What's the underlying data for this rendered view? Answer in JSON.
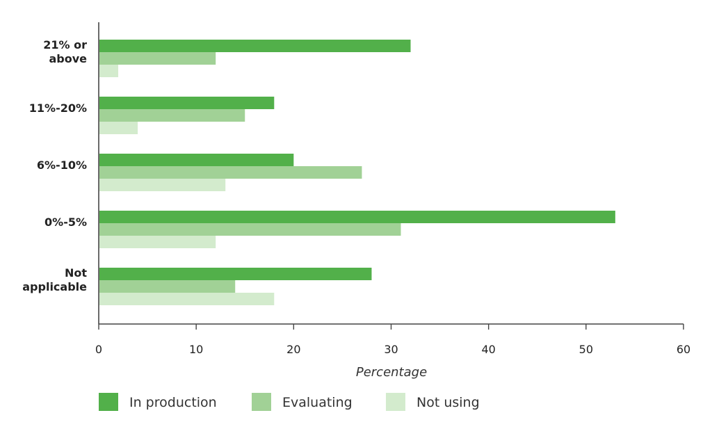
{
  "chart_data": {
    "type": "bar",
    "orientation": "horizontal",
    "categories": [
      "21% or above",
      "11%-20%",
      "6%-10%",
      "0%-5%",
      "Not applicable"
    ],
    "category_lines": [
      [
        "21% or",
        "above"
      ],
      [
        "11%-20%"
      ],
      [
        "6%-10%"
      ],
      [
        "0%-5%"
      ],
      [
        "Not",
        "applicable"
      ]
    ],
    "series": [
      {
        "name": "In production",
        "color": "#52b04a",
        "values": [
          32,
          18,
          20,
          53,
          28
        ]
      },
      {
        "name": "Evaluating",
        "color": "#a1d196",
        "values": [
          12,
          15,
          27,
          31,
          14
        ]
      },
      {
        "name": "Not using",
        "color": "#d3ebcd",
        "values": [
          2,
          4,
          13,
          12,
          18
        ]
      }
    ],
    "xlabel": "Percentage",
    "xlim": [
      0,
      60
    ],
    "xticks": [
      0,
      10,
      20,
      30,
      40,
      50,
      60
    ],
    "legend_position": "bottom-left",
    "grid": false
  }
}
